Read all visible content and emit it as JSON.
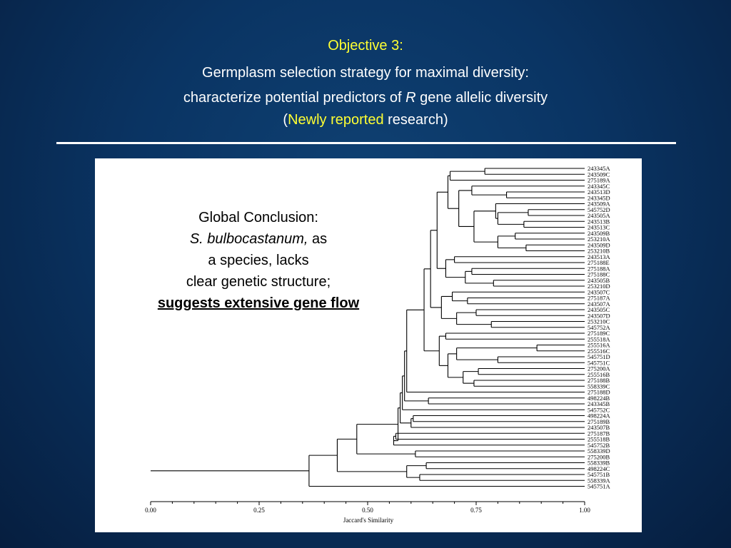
{
  "slide": {
    "heading": "Objective 3:",
    "line1": "Germplasm selection strategy for maximal diversity:",
    "line2_before": "characterize potential predictors of ",
    "line2_italic": "R",
    "line2_after": " gene allelic diversity",
    "line3_open": "(",
    "line3_highlight": "Newly reported",
    "line3_after": " research)"
  },
  "conclusion": {
    "title": "Global Conclusion:",
    "species": "S. bulbocastanum,",
    "as": " as",
    "line3": "a species, lacks",
    "line4": "clear genetic structure;",
    "emphasis": "suggests extensive gene flow"
  },
  "dendrogram": {
    "xlabel": "Jaccard's Similarity",
    "xlim": [
      0,
      1
    ],
    "ticks": [
      "0.00",
      "0.25",
      "0.50",
      "0.75",
      "1.00"
    ],
    "leaves": [
      "243345A",
      "243509C",
      "275189A",
      "243345C",
      "243513D",
      "243345D",
      "243509A",
      "545752D",
      "243505A",
      "243513B",
      "243513C",
      "243509B",
      "253210A",
      "243509D",
      "253210B",
      "243513A",
      "275188E",
      "275188A",
      "275188C",
      "243505B",
      "253210D",
      "243507C",
      "275187A",
      "243507A",
      "243505C",
      "243507D",
      "253210C",
      "545752A",
      "275189C",
      "255518A",
      "255516A",
      "255516C",
      "545751D",
      "545751C",
      "275200A",
      "255516B",
      "275188B",
      "558339C",
      "275188D",
      "498224B",
      "243345B",
      "545752C",
      "498224A",
      "275189B",
      "243507B",
      "275187B",
      "255518B",
      "545752B",
      "558339D",
      "275200B",
      "558339B",
      "498224C",
      "545751B",
      "558339A",
      "545751A"
    ]
  },
  "colors": {
    "background": "#0a3463",
    "highlight": "#ffff33",
    "text": "#ffffff",
    "panel": "#ffffff"
  }
}
